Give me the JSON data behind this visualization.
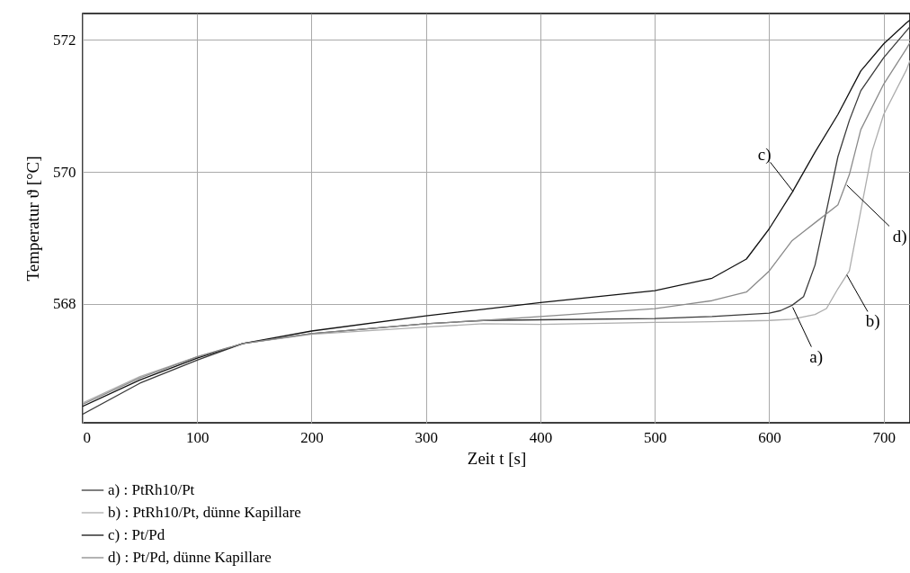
{
  "chart_data": {
    "type": "line",
    "xlabel": "Zeit t [s]",
    "ylabel": "Temperatur ϑ [°C]",
    "xlim": [
      0,
      723
    ],
    "ylim": [
      566.2,
      572.4
    ],
    "xticks": [
      0,
      100,
      200,
      300,
      400,
      500,
      600,
      700
    ],
    "yticks": [
      568,
      570,
      572
    ],
    "grid": true,
    "legend": "bottom left",
    "series": [
      {
        "name": "a) : PtRh10/Pt",
        "color": "#3a3a3a",
        "x": [
          0,
          50,
          100,
          140,
          200,
          300,
          350,
          400,
          500,
          550,
          600,
          610,
          620,
          630,
          640,
          650,
          660,
          670,
          680,
          700,
          720,
          723
        ],
        "values": [
          566.33,
          566.8,
          567.15,
          567.4,
          567.55,
          567.7,
          567.75,
          567.76,
          567.78,
          567.81,
          567.86,
          567.9,
          567.98,
          568.11,
          568.59,
          569.41,
          570.23,
          570.78,
          571.23,
          571.73,
          572.14,
          572.2
        ]
      },
      {
        "name": "b) : PtRh10/Pt, dünne Kapillare",
        "color": "#adadad",
        "x": [
          0,
          50,
          100,
          140,
          200,
          300,
          350,
          400,
          500,
          550,
          600,
          620,
          640,
          650,
          660,
          670,
          680,
          690,
          700,
          720,
          723
        ],
        "values": [
          566.5,
          566.9,
          567.2,
          567.4,
          567.54,
          567.65,
          567.7,
          567.69,
          567.72,
          567.73,
          567.75,
          567.77,
          567.84,
          567.93,
          568.23,
          568.5,
          569.41,
          570.32,
          570.87,
          571.55,
          571.69
        ]
      },
      {
        "name": "c) : Pt/Pd",
        "color": "#111111",
        "x": [
          0,
          50,
          100,
          140,
          200,
          300,
          350,
          400,
          500,
          550,
          580,
          600,
          620,
          640,
          660,
          680,
          700,
          720,
          723
        ],
        "values": [
          566.45,
          566.85,
          567.18,
          567.4,
          567.59,
          567.82,
          567.92,
          568.02,
          568.2,
          568.39,
          568.68,
          569.14,
          569.69,
          570.3,
          570.87,
          571.53,
          571.94,
          572.26,
          572.3
        ]
      },
      {
        "name": "d) : Pt/Pd, dünne Kapillare",
        "color": "#8a8a8a",
        "x": [
          0,
          50,
          100,
          140,
          200,
          300,
          350,
          400,
          500,
          550,
          580,
          600,
          620,
          640,
          660,
          670,
          680,
          700,
          720,
          723
        ],
        "values": [
          566.48,
          566.88,
          567.2,
          567.4,
          567.55,
          567.7,
          567.75,
          567.81,
          567.93,
          568.05,
          568.18,
          568.5,
          568.96,
          569.23,
          569.5,
          569.96,
          570.64,
          571.33,
          571.87,
          571.96
        ]
      }
    ],
    "annotations": [
      {
        "text": "a)",
        "x": 620.5,
        "y": 567.95
      },
      {
        "text": "b)",
        "x": 667.8,
        "y": 568.44
      },
      {
        "text": "c)",
        "x": 621,
        "y": 569.7
      },
      {
        "text": "d)",
        "x": 667.8,
        "y": 569.8
      }
    ]
  }
}
